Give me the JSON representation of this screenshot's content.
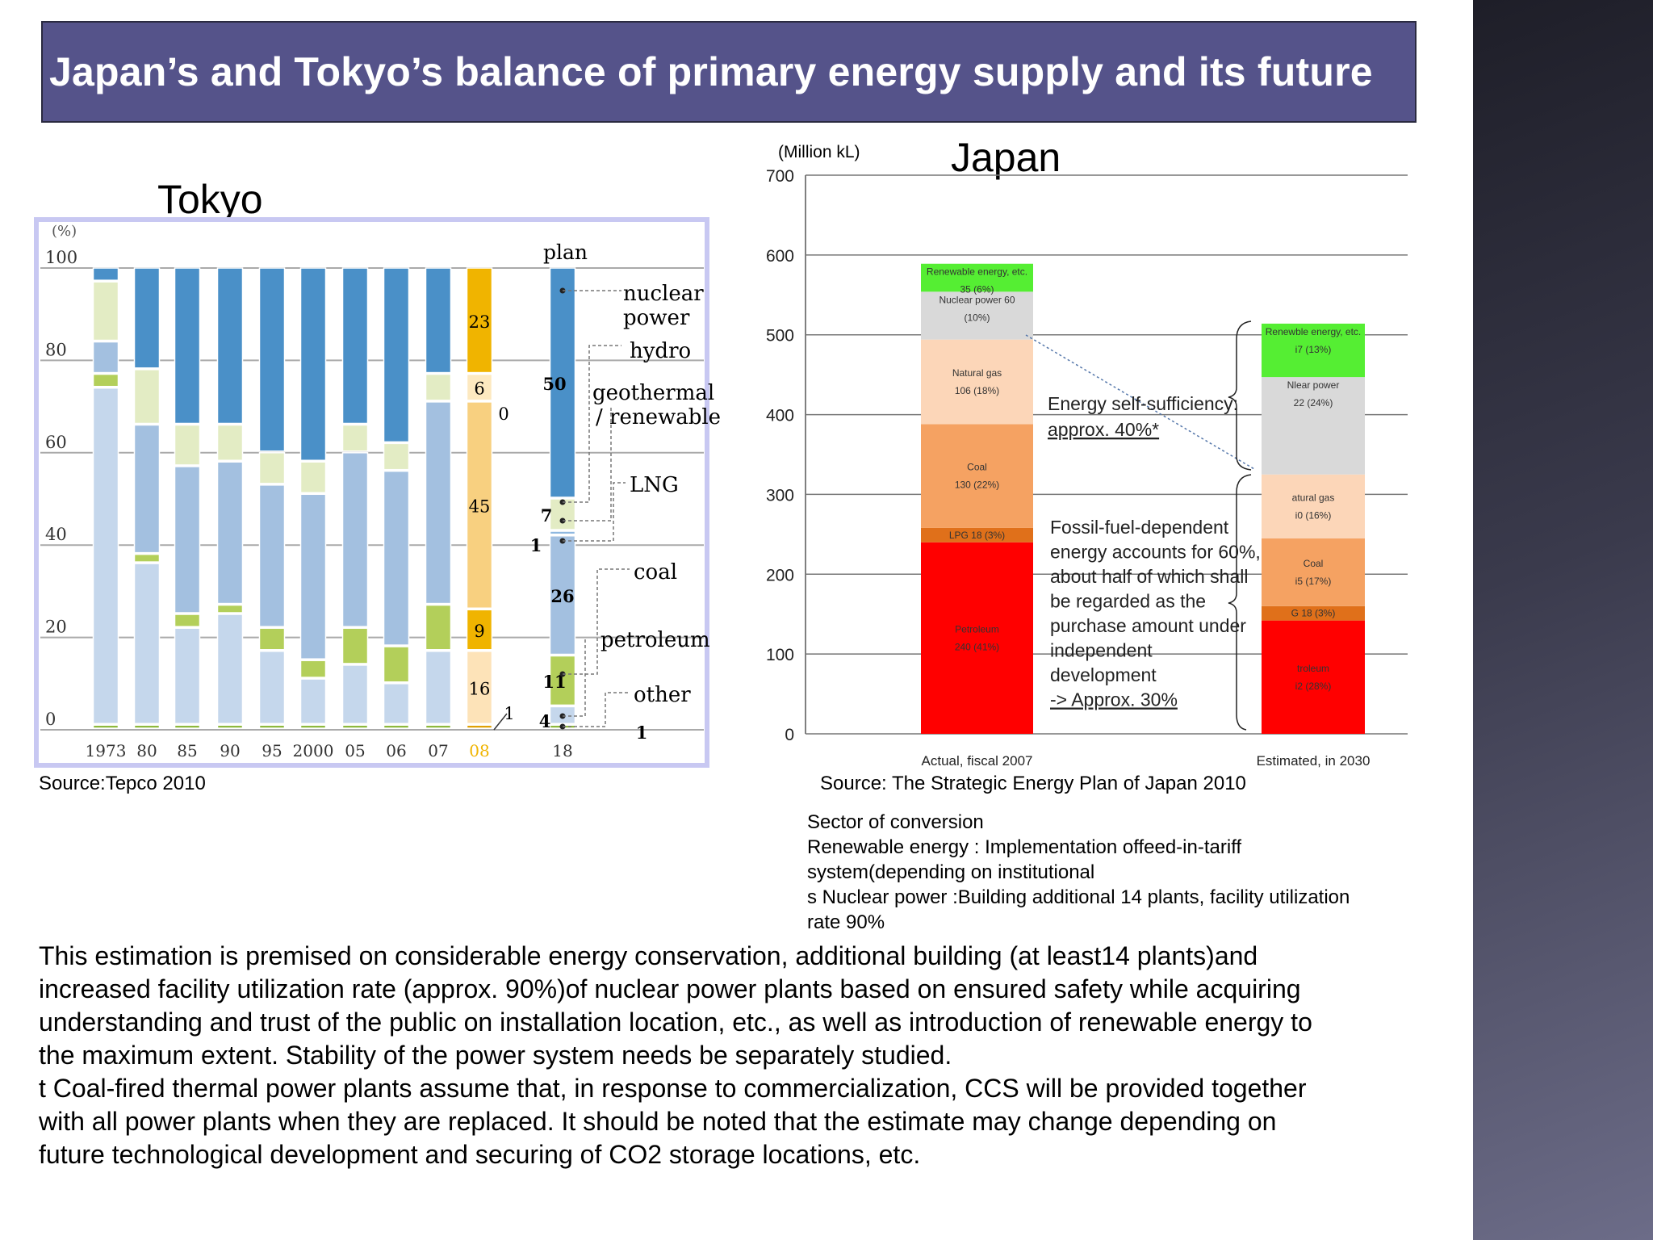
{
  "title": "Japan’s and Tokyo’s balance of primary energy supply and its future",
  "tokyo_label": "Tokyo",
  "tokyo_source": "Source:Tepco 2010",
  "japan_source": "Source: The Strategic Energy Plan of Japan 2010",
  "sector_notes": [
    "Sector of conversion",
    "Renewable energy : Implementation offeed-in-tariff",
    "system(depending on institutional",
    "s Nuclear power :Building additional 14 plants, facility utilization",
    "rate 90%"
  ],
  "paragraph": [
    "This estimation is premised on considerable energy conservation, additional building (at least14 plants)and",
    "increased facility utilization rate (approx. 90%)of nuclear power plants based on ensured safety while acquiring",
    "understanding and trust of the public on installation location, etc., as well as introduction of renewable energy to",
    "the maximum extent. Stability of the power system needs be separately studied.",
    "t  Coal-fired thermal power plants assume that, in response to commercialization, CCS will be provided together",
    "with all power plants when they are replaced. It should be noted that the estimate may change depending on",
    "future technological development and securing of CO2 storage locations, etc."
  ],
  "chart_data": [
    {
      "type": "bar",
      "stacked": true,
      "ylabel": "(%)",
      "ylim": [
        0,
        100
      ],
      "yticks": [
        "0",
        "20",
        "40",
        "60",
        "80",
        "100"
      ],
      "grid": true,
      "plan_label": "plan",
      "categories": [
        "1973",
        "80",
        "85",
        "90",
        "95",
        "2000",
        "05",
        "06",
        "07",
        "08",
        "18"
      ],
      "highlight_category": "08",
      "highlight_color": "#f0b400",
      "series": [
        {
          "name": "other",
          "color": "#8cb83a",
          "values": [
            1,
            1,
            1,
            1,
            1,
            1,
            1,
            1,
            1,
            1,
            1
          ]
        },
        {
          "name": "petroleum",
          "color": "#c5d7ec",
          "values": [
            73,
            35,
            21,
            24,
            16,
            10,
            13,
            9,
            16,
            16,
            4
          ]
        },
        {
          "name": "coal",
          "color": "#b3cf5a",
          "values": [
            3,
            2,
            3,
            2,
            5,
            4,
            8,
            8,
            10,
            9,
            11
          ]
        },
        {
          "name": "LNG",
          "color": "#a3c0e0",
          "values": [
            7,
            28,
            32,
            31,
            31,
            36,
            38,
            38,
            44,
            45,
            26
          ]
        },
        {
          "name": "geothermal / renewable",
          "color": "#8fb8e0",
          "values": [
            0,
            0,
            0,
            0,
            0,
            0,
            0,
            0,
            0,
            0,
            1
          ]
        },
        {
          "name": "hydro",
          "color": "#e3ecc4",
          "values": [
            13,
            12,
            9,
            8,
            7,
            7,
            6,
            6,
            6,
            6,
            7
          ]
        },
        {
          "name": "nuclear power",
          "color": "#4a90c8",
          "values": [
            3,
            22,
            34,
            34,
            40,
            42,
            34,
            38,
            23,
            23,
            50
          ]
        }
      ],
      "highlight_colors": [
        "#e0a000",
        "#fde3b8",
        "#f0b400",
        "#f8d080",
        "#fde9c0",
        "#fde9c0",
        "#f0b400"
      ],
      "legend_labels": [
        "nuclear",
        "power",
        "hydro",
        "geothermal",
        "/ renewable",
        "LNG",
        "coal",
        "petroleum",
        "other"
      ],
      "data_labels_08": [
        "1",
        "16",
        "9",
        "45",
        "0",
        "6",
        "23"
      ],
      "data_labels_18": [
        "1",
        "4",
        "11",
        "26",
        "1",
        "7",
        "50"
      ]
    },
    {
      "type": "bar",
      "stacked": true,
      "title": "Japan",
      "ylabel": "(Million kL)",
      "ylim": [
        0,
        700
      ],
      "yticks": [
        "0",
        "100",
        "200",
        "300",
        "400",
        "500",
        "600",
        "700"
      ],
      "grid": true,
      "categories": [
        "Actual, fiscal 2007",
        "Estimated, in 2030"
      ],
      "series": [
        {
          "name": "Petroleum",
          "color": "#ff0000",
          "values": [
            240,
            142
          ],
          "labels": [
            [
              "Petroleum",
              "240 (41%)"
            ],
            [
              "troleum",
              "i2 (28%)"
            ]
          ]
        },
        {
          "name": "LPG",
          "color": "#e0701a",
          "values": [
            18,
            18
          ],
          "labels": [
            [
              "LPG 18 (3%)"
            ],
            [
              "G 18 (3%)"
            ]
          ]
        },
        {
          "name": "Coal",
          "color": "#f5a262",
          "values": [
            130,
            85
          ],
          "labels": [
            [
              "Coal",
              "130 (22%)"
            ],
            [
              "Coal",
              "i5 (17%)"
            ]
          ]
        },
        {
          "name": "Natural gas",
          "color": "#fcd6b8",
          "values": [
            106,
            80
          ],
          "labels": [
            [
              "Natural gas",
              "106 (18%)"
            ],
            [
              "atural gas",
              "i0 (16%)"
            ]
          ]
        },
        {
          "name": "Nuclear power",
          "color": "#d9d9d9",
          "values": [
            60,
            122
          ],
          "labels": [
            [
              "Nuclear power 60",
              "(10%)"
            ],
            [
              "Nlear power",
              "22 (24%)"
            ]
          ]
        },
        {
          "name": "Renewable energy, etc.",
          "color": "#55ee33",
          "values": [
            35,
            67
          ],
          "labels": [
            [
              "Renewable energy, etc.",
              "35 (6%)"
            ],
            [
              "Renewble energy, etc.",
              "i7 (13%)"
            ]
          ]
        }
      ],
      "annotations": {
        "self_sufficiency": [
          "Energy self-sufficiency:",
          "approx. 40%*"
        ],
        "fossil": [
          "Fossil-fuel-dependent",
          "energy accounts for 60%,",
          "about half of which shall",
          "be regarded as the",
          "purchase amount under",
          "independent",
          "development",
          "-> Approx. 30%"
        ]
      }
    }
  ]
}
